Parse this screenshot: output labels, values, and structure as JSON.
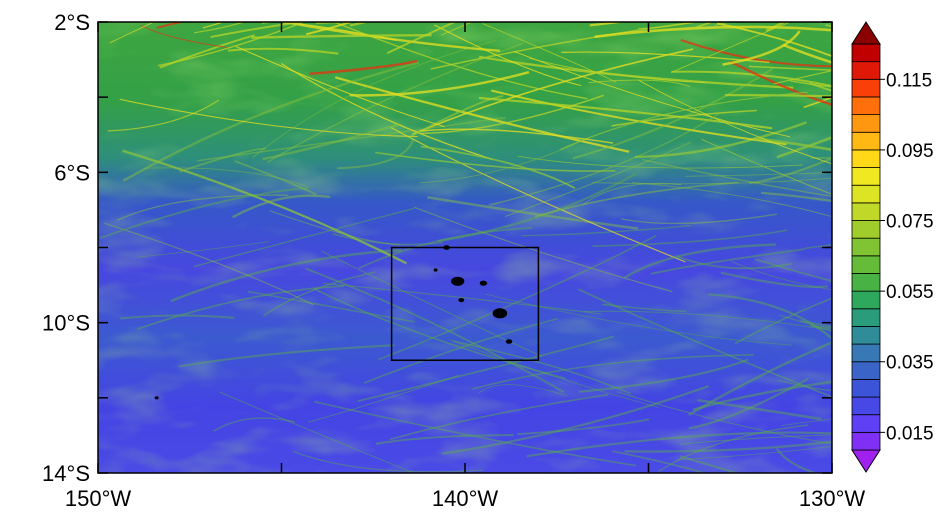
{
  "map": {
    "lon_range": [
      -150,
      -130
    ],
    "lat_range": [
      -14,
      -2
    ],
    "x_ticks": [
      {
        "value": -150,
        "label": "150°W"
      },
      {
        "value": -140,
        "label": "140°W"
      },
      {
        "value": -130,
        "label": "130°W"
      }
    ],
    "y_ticks": [
      {
        "value": -2,
        "label": "2°S"
      },
      {
        "value": -6,
        "label": "6°S"
      },
      {
        "value": -10,
        "label": "10°S"
      },
      {
        "value": -14,
        "label": "14°S"
      }
    ],
    "minor_x_ticks": [
      -145,
      -135
    ],
    "minor_y_ticks": [
      -4,
      -8,
      -12
    ],
    "box_region": {
      "lon": [
        -142,
        -138
      ],
      "lat": [
        -11,
        -8
      ]
    },
    "land_color": "#000000",
    "islands": [
      {
        "lon": -140.2,
        "lat": -8.9,
        "r": 0.18
      },
      {
        "lon": -139.5,
        "lat": -8.95,
        "r": 0.1
      },
      {
        "lon": -140.5,
        "lat": -8.0,
        "r": 0.09
      },
      {
        "lon": -140.1,
        "lat": -9.4,
        "r": 0.08
      },
      {
        "lon": -139.05,
        "lat": -9.75,
        "r": 0.2
      },
      {
        "lon": -138.8,
        "lat": -10.5,
        "r": 0.09
      },
      {
        "lon": -140.8,
        "lat": -8.6,
        "r": 0.04
      },
      {
        "lon": -148.4,
        "lat": -12.0,
        "r": 0.05
      }
    ]
  },
  "colorbar": {
    "tick_labels": [
      "0.115",
      "0.095",
      "0.075",
      "0.055",
      "0.035",
      "0.015"
    ],
    "tick_values": [
      0.115,
      0.095,
      0.075,
      0.055,
      0.035,
      0.015
    ],
    "range": [
      0.01,
      0.125
    ],
    "step": 0.005,
    "colors": [
      "#a020f0",
      "#8030f5",
      "#6040f5",
      "#4848e6",
      "#3c54d8",
      "#3a64c8",
      "#3878b4",
      "#308c98",
      "#2a9c7c",
      "#2ea85c",
      "#48b244",
      "#64bc38",
      "#80c434",
      "#a0cc2c",
      "#c0d828",
      "#dce424",
      "#f0e820",
      "#ffd818",
      "#ffb814",
      "#ff9810",
      "#ff700c",
      "#f84008",
      "#e01808",
      "#c00000",
      "#8b0000"
    ]
  }
}
